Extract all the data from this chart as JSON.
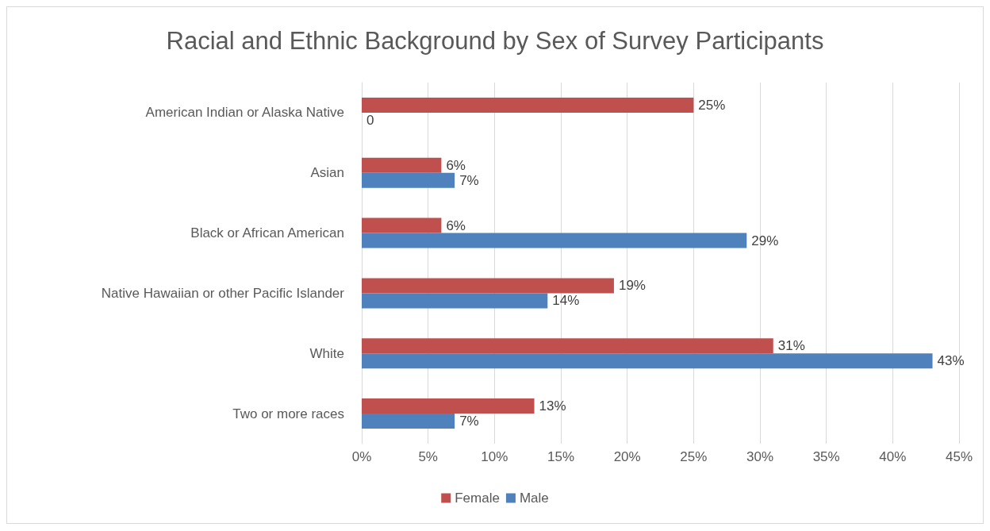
{
  "chart_data": {
    "type": "bar",
    "orientation": "horizontal",
    "title": "Racial and Ethnic Background by Sex of Survey Participants",
    "categories": [
      "American Indian or Alaska Native",
      "Asian",
      "Black or African American",
      "Native Hawaiian or other Pacific Islander",
      "White",
      "Two or more races"
    ],
    "series": [
      {
        "name": "Female",
        "color": "#c0504d",
        "values": [
          25,
          6,
          6,
          19,
          31,
          13
        ],
        "value_labels": [
          "25%",
          "6%",
          "6%",
          "19%",
          "31%",
          "13%"
        ]
      },
      {
        "name": "Male",
        "color": "#4f81bd",
        "values": [
          0,
          7,
          29,
          14,
          43,
          7
        ],
        "value_labels": [
          "0",
          "7%",
          "29%",
          "14%",
          "43%",
          "7%"
        ]
      }
    ],
    "xlim": [
      0,
      45
    ],
    "xticks": [
      {
        "value": 0,
        "label": "0%"
      },
      {
        "value": 5,
        "label": "5%"
      },
      {
        "value": 10,
        "label": "10%"
      },
      {
        "value": 15,
        "label": "15%"
      },
      {
        "value": 20,
        "label": "20%"
      },
      {
        "value": 25,
        "label": "25%"
      },
      {
        "value": 30,
        "label": "30%"
      },
      {
        "value": 35,
        "label": "35%"
      },
      {
        "value": 40,
        "label": "40%"
      },
      {
        "value": 45,
        "label": "45%"
      }
    ],
    "grid": "x",
    "legend": "bottom"
  }
}
